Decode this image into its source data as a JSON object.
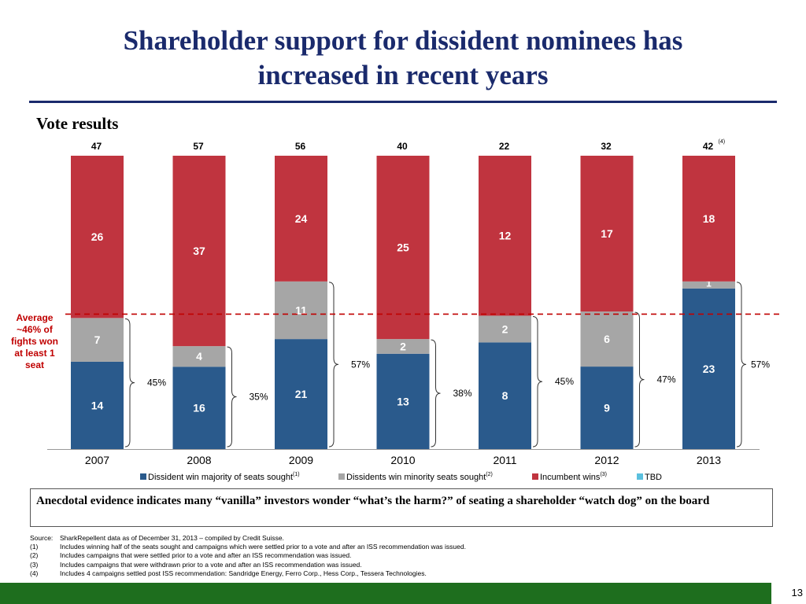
{
  "slide": {
    "title_line1": "Shareholder support for dissident nominees has",
    "title_line2": "increased in recent years",
    "subtitle": "Vote results",
    "callout": "Anecdotal evidence indicates many “vanilla” investors wonder “what’s the harm?” of seating a shareholder “watch dog” on the board",
    "page_number": "13"
  },
  "footnotes": [
    {
      "key": "Source:",
      "text": "SharkRepellent data as of December 31, 2013 – compiled by Credit Suisse."
    },
    {
      "key": "(1)",
      "text": "Includes winning half of the seats sought and campaigns which were settled prior to a vote and after an ISS recommendation was issued."
    },
    {
      "key": "(2)",
      "text": "Includes campaigns that were settled prior to a vote and after an ISS recommendation was issued."
    },
    {
      "key": "(3)",
      "text": "Includes campaigns that were withdrawn prior to a vote and after an ISS recommendation was issued."
    },
    {
      "key": "(4)",
      "text": "Includes 4 campaigns settled post ISS recommendation: Sandridge Energy, Ferro Corp., Hess Corp., Tessera Technologies."
    }
  ],
  "chart_data": {
    "type": "bar",
    "stacked": true,
    "normalized": true,
    "categories": [
      "2007",
      "2008",
      "2009",
      "2010",
      "2011",
      "2012",
      "2013"
    ],
    "totals": [
      "47",
      "57",
      "56",
      "40",
      "22",
      "32",
      "42"
    ],
    "total_notes": [
      "",
      "",
      "",
      "",
      "",
      "",
      "(4)"
    ],
    "series": [
      {
        "name": "Dissident win majority of seats sought",
        "note": "(1)",
        "color": "#2a5a8c",
        "values": [
          14,
          16,
          21,
          13,
          8,
          9,
          23
        ]
      },
      {
        "name": "Dissidents win minority seats sought",
        "note": "(2)",
        "color": "#a6a6a6",
        "values": [
          7,
          4,
          11,
          2,
          2,
          6,
          1
        ]
      },
      {
        "name": "Incumbent wins",
        "note": "(3)",
        "color": "#c0343f",
        "values": [
          26,
          37,
          24,
          25,
          12,
          17,
          18
        ]
      },
      {
        "name": "TBD",
        "note": "",
        "color": "#5bc0de",
        "values": [
          0,
          0,
          0,
          0,
          0,
          0,
          0
        ]
      }
    ],
    "dissident_success": [
      "45%",
      "35%",
      "57%",
      "38%",
      "45%",
      "47%",
      "57%"
    ],
    "average": {
      "value": 46,
      "label": "Average ~46% of fights won at least 1 seat",
      "color": "#c00000"
    },
    "ylim": [
      0,
      100
    ],
    "legend_position": "bottom"
  }
}
